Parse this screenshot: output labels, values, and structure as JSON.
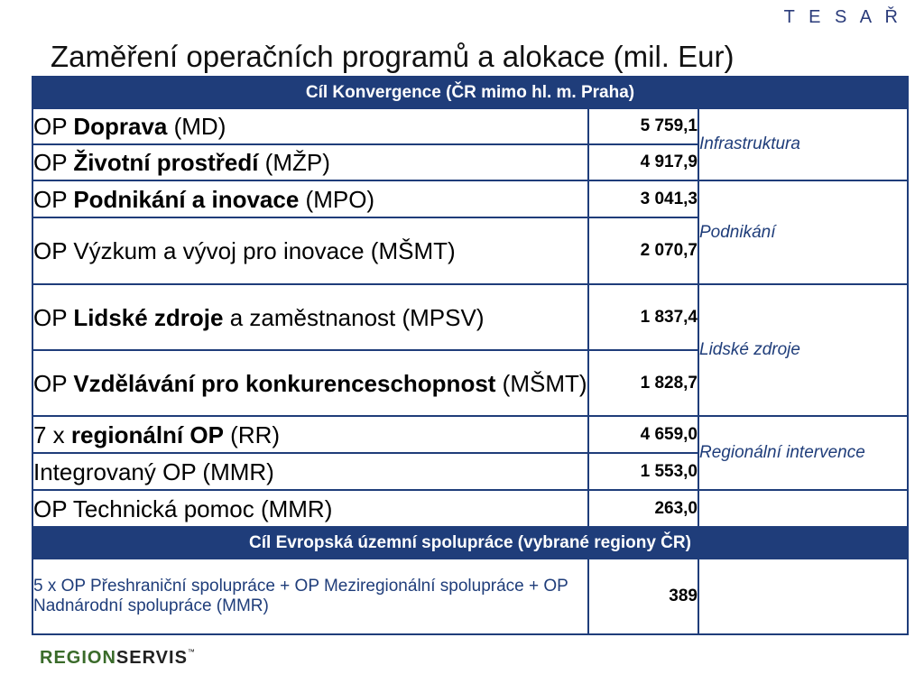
{
  "brand": "T E S A Ř",
  "title": "Zaměření operačních programů a alokace (mil. Eur)",
  "sections": {
    "convergence": "Cíl Konvergence (ČR mimo hl. m. Praha)",
    "european": "Cíl Evropská územní spolupráce (vybrané regiony ČR)"
  },
  "rows": [
    {
      "pre": "OP ",
      "bold": "Doprava",
      "post": " (MD)",
      "value": "5 759,1"
    },
    {
      "pre": "OP ",
      "bold": "Životní prostředí",
      "post": " (MŽP)",
      "value": "4 917,9"
    },
    {
      "pre": "OP ",
      "bold": "Podnikání a inovace",
      "post": " (MPO)",
      "value": "3 041,3"
    },
    {
      "pre": "OP Výzkum a vývoj pro inovace (MŠMT)",
      "bold": "",
      "post": "",
      "value": "2 070,7"
    },
    {
      "pre": "OP ",
      "bold": "Lidské zdroje",
      "post": " a zaměstnanost (MPSV)",
      "value": "1 837,4"
    },
    {
      "pre": "OP ",
      "bold": "Vzdělávání pro konkurenceschopnost",
      "post": " (MŠMT)",
      "value": "1 828,7"
    },
    {
      "pre": "7 x ",
      "bold": "regionální OP",
      "post": " (RR)",
      "value": "4 659,0"
    },
    {
      "pre": "Integrovaný OP (MMR)",
      "bold": "",
      "post": "",
      "value": "1 553,0"
    },
    {
      "pre": "OP Technická pomoc (MMR)",
      "bold": "",
      "post": "",
      "value": "263,0"
    }
  ],
  "categories": {
    "infra": "Infrastruktura",
    "business": "Podnikání",
    "human": "Lidské zdroje",
    "regional": "Regionální intervence"
  },
  "cooperation": {
    "text": "5 x OP Přeshraniční spolupráce + OP Meziregionální spolupráce + OP Nadnárodní spolupráce (MMR)",
    "value": "389"
  },
  "footer": {
    "logo_a": "REGION",
    "logo_b": "SERVIS",
    "tm": "™"
  }
}
